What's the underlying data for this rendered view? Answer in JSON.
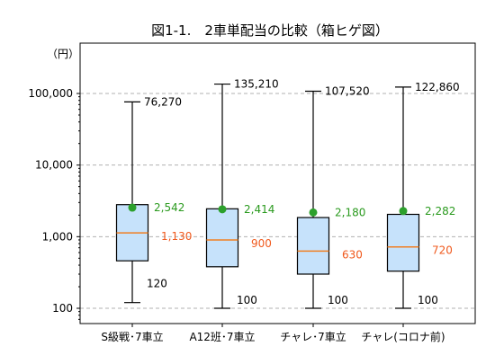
{
  "chart_data": {
    "type": "boxplot",
    "title": "図1-1.　2車単配当の比較（箱ヒゲ図）",
    "y_unit_label": "（円）",
    "y_scale": "log",
    "ylim": [
      100,
      200000
    ],
    "yticks": [
      {
        "value": 100,
        "label": "100"
      },
      {
        "value": 1000,
        "label": "1,000"
      },
      {
        "value": 10000,
        "label": "10,000"
      },
      {
        "value": 100000,
        "label": "100,000"
      }
    ],
    "grid": true,
    "categories": [
      "S級戦･7車立",
      "A12班･7車立",
      "チャレ･7車立",
      "チャレ(コロナ前)"
    ],
    "boxes": [
      {
        "min": 120,
        "q1": 460,
        "median": 1130,
        "q3": 2800,
        "max": 76270,
        "mean": 2542,
        "max_label": "76,270",
        "mean_label": "2,542",
        "median_label": "1,130",
        "min_label": "120"
      },
      {
        "min": 100,
        "q1": 380,
        "median": 900,
        "q3": 2450,
        "max": 135210,
        "mean": 2414,
        "max_label": "135,210",
        "mean_label": "2,414",
        "median_label": "900",
        "min_label": "100"
      },
      {
        "min": 100,
        "q1": 300,
        "median": 630,
        "q3": 1850,
        "max": 107520,
        "mean": 2180,
        "max_label": "107,520",
        "mean_label": "2,180",
        "median_label": "630",
        "min_label": "100"
      },
      {
        "min": 100,
        "q1": 330,
        "median": 720,
        "q3": 2050,
        "max": 122860,
        "mean": 2282,
        "max_label": "122,860",
        "mean_label": "2,282",
        "median_label": "720",
        "min_label": "100"
      }
    ],
    "colors": {
      "box_fill": "#c6e2fb",
      "box_edge": "#000000",
      "median_line": "#f07f23",
      "median_label": "#f05a1e",
      "mean_marker": "#2ca02c",
      "mean_label": "#2a9a1e",
      "grid": "#b0b0b0",
      "text": "#000000"
    }
  }
}
